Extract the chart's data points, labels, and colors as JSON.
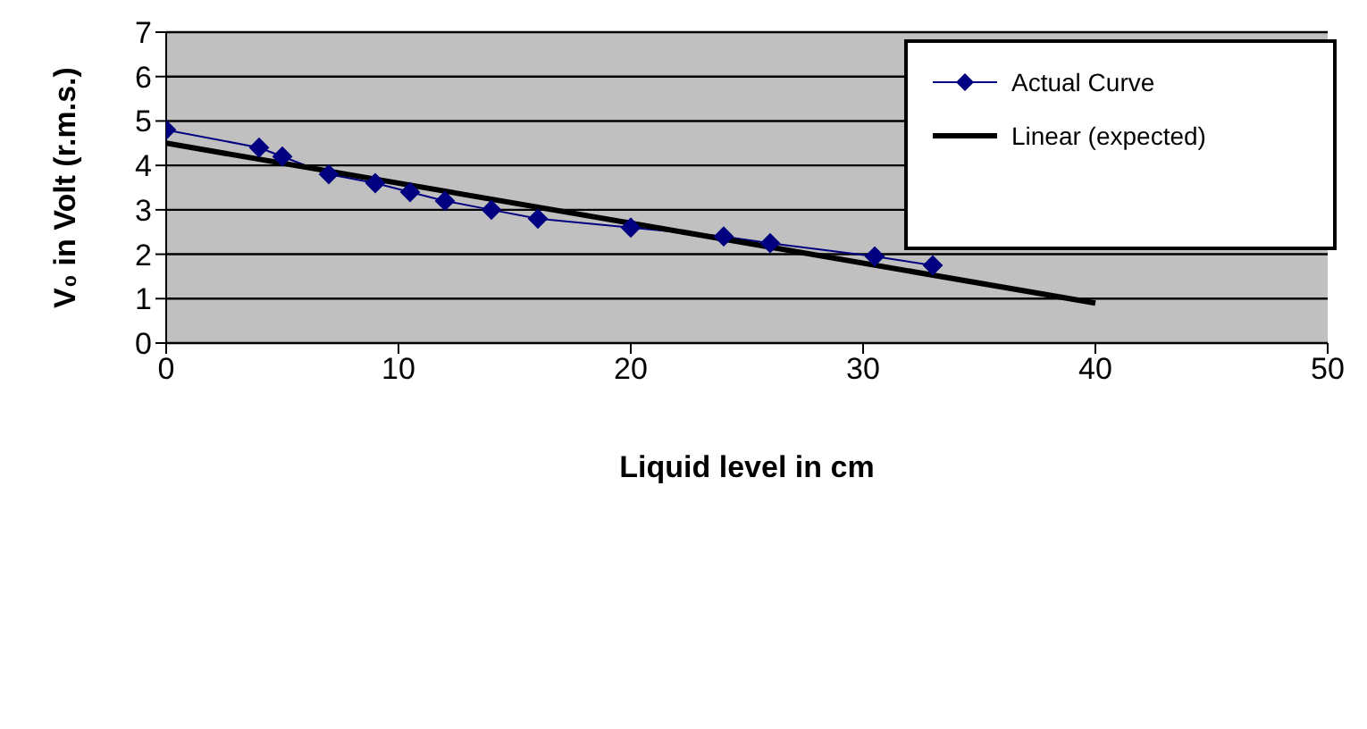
{
  "chart_data": {
    "type": "line",
    "xlabel": "Liquid level in cm",
    "ylabel": "V₀ in Volt (r.m.s.)",
    "xlim": [
      0,
      50
    ],
    "xticks": [
      0,
      10,
      20,
      30,
      40,
      50
    ],
    "ylim": [
      0,
      7
    ],
    "yticks": [
      0,
      1,
      2,
      3,
      4,
      5,
      6,
      7
    ],
    "grid": "y",
    "legend": "top right",
    "series": [
      {
        "name": "Actual Curve",
        "color": "#000080",
        "marker": "diamond",
        "x": [
          0,
          4,
          5,
          7,
          9,
          10.5,
          12,
          14,
          16,
          20,
          24,
          26,
          30.5,
          33
        ],
        "values": [
          4.8,
          4.4,
          4.2,
          3.8,
          3.6,
          3.4,
          3.2,
          3.0,
          2.8,
          2.6,
          2.4,
          2.25,
          1.95,
          1.75
        ]
      },
      {
        "name": "Linear (expected)",
        "color": "#000000",
        "marker": "none",
        "x": [
          0,
          40
        ],
        "values": [
          4.5,
          0.9
        ]
      }
    ]
  }
}
